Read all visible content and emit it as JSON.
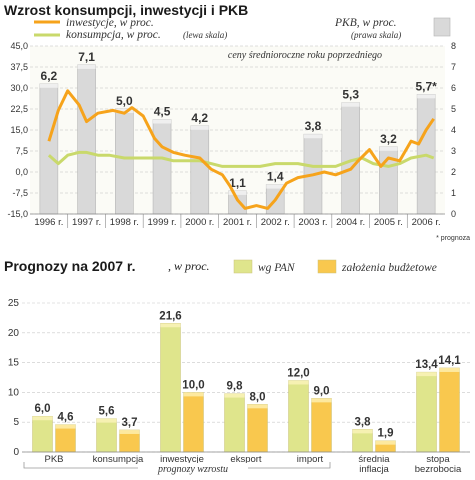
{
  "chart_data": [
    {
      "type": "line",
      "title": "Wzrost konsumpcji, inwestycji i PKB",
      "subtitle": "ceny średnioroczne roku poprzedniego",
      "legend": [
        {
          "label": "inwestycje, w proc.",
          "color": "#f6a31b"
        },
        {
          "label": "konsumpcja, w proc.",
          "color": "#c9d96b",
          "note": "(lewa skala)"
        },
        {
          "label": "PKB, w proc.",
          "color": "#cfcfcf",
          "note": "(prawa skala)"
        }
      ],
      "x_labels": [
        "1996 r.",
        "1997 r.",
        "1998 r.",
        "1999 r.",
        "2000 r.",
        "2001 r.",
        "2002 r.",
        "2003 r.",
        "2004 r.",
        "2005 r.",
        "2006 r."
      ],
      "y_left": {
        "ticks": [
          "45,0",
          "37,5",
          "30,0",
          "22,5",
          "15,0",
          "7,5",
          "0,0",
          "-7,5",
          "-15,0"
        ],
        "min": -15,
        "max": 45
      },
      "y_right": {
        "ticks": [
          "8",
          "7",
          "6",
          "5",
          "4",
          "3",
          "2",
          "1",
          "0"
        ],
        "min": 0,
        "max": 8
      },
      "pkb": {
        "values": [
          6.2,
          7.1,
          5.0,
          4.5,
          4.2,
          1.1,
          1.4,
          3.8,
          5.3,
          3.2,
          5.7
        ],
        "labels": [
          "6,2",
          "7,1",
          "5,0",
          "4,5",
          "4,2",
          "1,1",
          "1,4",
          "3,8",
          "5,3",
          "3,2",
          "5,7*"
        ]
      },
      "inwestycje": [
        [
          0,
          11
        ],
        [
          0.25,
          22
        ],
        [
          0.5,
          29
        ],
        [
          0.8,
          24
        ],
        [
          1,
          18
        ],
        [
          1.3,
          21
        ],
        [
          1.7,
          22
        ],
        [
          2,
          21
        ],
        [
          2.2,
          23
        ],
        [
          2.5,
          20
        ],
        [
          2.8,
          12
        ],
        [
          3,
          9
        ],
        [
          3.3,
          7
        ],
        [
          3.6,
          6
        ],
        [
          4,
          5
        ],
        [
          4.3,
          1
        ],
        [
          4.6,
          -1
        ],
        [
          4.8,
          -5
        ],
        [
          5,
          -10
        ],
        [
          5.2,
          -13
        ],
        [
          5.5,
          -12
        ],
        [
          5.8,
          -13
        ],
        [
          6,
          -10
        ],
        [
          6.3,
          -4
        ],
        [
          6.6,
          -2
        ],
        [
          7,
          -1
        ],
        [
          7.3,
          0
        ],
        [
          7.6,
          -1
        ],
        [
          8,
          1
        ],
        [
          8.2,
          4
        ],
        [
          8.5,
          8
        ],
        [
          8.8,
          2
        ],
        [
          9,
          5
        ],
        [
          9.3,
          4
        ],
        [
          9.6,
          11
        ],
        [
          9.8,
          10
        ],
        [
          10,
          15
        ],
        [
          10.2,
          19
        ]
      ],
      "konsumpcja": [
        [
          0,
          6
        ],
        [
          0.25,
          3
        ],
        [
          0.5,
          6
        ],
        [
          0.8,
          7
        ],
        [
          1,
          7
        ],
        [
          1.3,
          6
        ],
        [
          1.6,
          6
        ],
        [
          2,
          5
        ],
        [
          2.3,
          5
        ],
        [
          2.6,
          5
        ],
        [
          3,
          5
        ],
        [
          3.3,
          4
        ],
        [
          3.6,
          4
        ],
        [
          4,
          4
        ],
        [
          4.3,
          3
        ],
        [
          4.6,
          2
        ],
        [
          5,
          2
        ],
        [
          5.3,
          2
        ],
        [
          5.6,
          2
        ],
        [
          6,
          3
        ],
        [
          6.3,
          3
        ],
        [
          6.6,
          3
        ],
        [
          7,
          2
        ],
        [
          7.3,
          2
        ],
        [
          7.6,
          2
        ],
        [
          8,
          4
        ],
        [
          8.3,
          5
        ],
        [
          8.6,
          3
        ],
        [
          9,
          2
        ],
        [
          9.3,
          3
        ],
        [
          9.6,
          5
        ],
        [
          10,
          6
        ],
        [
          10.2,
          5
        ]
      ],
      "footnote": "* prognoza"
    },
    {
      "type": "bar",
      "title": "Prognozy na 2007 r.",
      "unit": ", w proc.",
      "series": [
        {
          "name": "wg PAN",
          "color": "#dfe58c",
          "values": [
            6.0,
            5.6,
            21.6,
            9.8,
            12.0,
            3.8,
            13.4
          ],
          "labels": [
            "6,0",
            "5,6",
            "21,6",
            "9,8",
            "12,0",
            "3,8",
            "13,4"
          ]
        },
        {
          "name": "założenia budżetowe",
          "color": "#f9c84e",
          "values": [
            4.6,
            3.7,
            10.0,
            8.0,
            9.0,
            1.9,
            14.1
          ],
          "labels": [
            "4,6",
            "3,7",
            "10,0",
            "8,0",
            "9,0",
            "1,9",
            "14,1"
          ]
        }
      ],
      "categories": [
        "PKB",
        "konsumpcja",
        "inwestycje",
        "eksport",
        "import",
        "średnia inflacja",
        "stopa bezrobocia"
      ],
      "y_ticks": [
        "25",
        "20",
        "15",
        "10",
        "5",
        "0"
      ],
      "ylim": [
        0,
        25
      ],
      "group_label": "prognozy wzrostu"
    }
  ]
}
